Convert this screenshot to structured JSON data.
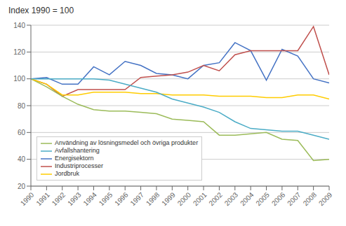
{
  "chart_data": {
    "type": "line",
    "title": "Index 1990 = 100",
    "x": [
      1990,
      1991,
      1992,
      1993,
      1994,
      1995,
      1996,
      1997,
      1998,
      1999,
      2000,
      2001,
      2002,
      2003,
      2004,
      2005,
      2006,
      2007,
      2008,
      2009
    ],
    "series": [
      {
        "name": "Energisektorn",
        "color": "#4472C4",
        "values": [
          100,
          101,
          96,
          96,
          109,
          103,
          113,
          110,
          104,
          103,
          100,
          110,
          112,
          127,
          121,
          99,
          122,
          117,
          100,
          97
        ]
      },
      {
        "name": "Industriprocesser",
        "color": "#C0504D",
        "values": [
          100,
          96,
          87,
          92,
          92,
          92,
          92,
          101,
          102,
          103,
          105,
          110,
          106,
          118,
          121,
          121,
          121,
          121,
          139,
          103
        ]
      },
      {
        "name": "Användning av lösningsmedel och övriga produkter",
        "color": "#9BBB59",
        "values": [
          100,
          94,
          87,
          81,
          77,
          76,
          76,
          75,
          74,
          70,
          69,
          68,
          58,
          58,
          59,
          60,
          55,
          54,
          39,
          40
        ]
      },
      {
        "name": "Jordbruk",
        "color": "#FFCC00",
        "values": [
          100,
          96,
          88,
          88,
          90,
          90,
          90,
          89,
          89,
          88,
          88,
          88,
          87,
          87,
          87,
          86,
          86,
          88,
          88,
          85
        ]
      },
      {
        "name": "Avfallshantering",
        "color": "#4BACC6",
        "values": [
          100,
          100,
          100,
          100,
          100,
          99,
          96,
          93,
          90,
          85,
          82,
          79,
          75,
          68,
          63,
          62,
          61,
          61,
          58,
          55
        ]
      }
    ],
    "xlim": [
      1990,
      2009
    ],
    "xticks": [
      1990,
      1991,
      1992,
      1993,
      1994,
      1995,
      1996,
      1997,
      1998,
      1999,
      2000,
      2001,
      2002,
      2003,
      2004,
      2005,
      2006,
      2007,
      2008,
      2009
    ],
    "ylim": [
      20,
      140
    ],
    "yticks": [
      20,
      40,
      60,
      80,
      100,
      120,
      140
    ],
    "grid": "y",
    "legend": "lower left"
  }
}
